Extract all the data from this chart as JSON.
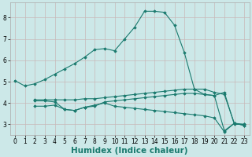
{
  "xlabel": "Humidex (Indice chaleur)",
  "bg_color": "#cce8e8",
  "grid_color": "#b0d0d0",
  "line_color": "#1a7a6e",
  "lines": [
    {
      "x": [
        0,
        1,
        2,
        3,
        4,
        5,
        6,
        7,
        8,
        9,
        10,
        11,
        12,
        13,
        14,
        15,
        16,
        17,
        18,
        19,
        20,
        21,
        22,
        23
      ],
      "y": [
        5.05,
        4.8,
        4.9,
        5.1,
        5.35,
        5.6,
        5.85,
        6.15,
        6.5,
        6.55,
        6.45,
        7.0,
        7.55,
        8.3,
        8.3,
        8.25,
        7.65,
        6.35,
        4.65,
        4.4,
        4.35,
        4.5,
        3.0,
        3.0
      ]
    },
    {
      "x": [
        2,
        3,
        4,
        5,
        6,
        7,
        8,
        9,
        10,
        11,
        12,
        13,
        14,
        15,
        16,
        17,
        18,
        19,
        20,
        21,
        22,
        23
      ],
      "y": [
        4.15,
        4.15,
        4.15,
        4.15,
        4.15,
        4.2,
        4.2,
        4.25,
        4.3,
        4.35,
        4.4,
        4.45,
        4.5,
        4.55,
        4.6,
        4.65,
        4.65,
        4.65,
        4.5,
        4.4,
        3.05,
        3.0
      ]
    },
    {
      "x": [
        2,
        3,
        4,
        5,
        6,
        7,
        8,
        9,
        10,
        11,
        12,
        13,
        14,
        15,
        16,
        17,
        18,
        19,
        20,
        21,
        22,
        23
      ],
      "y": [
        3.85,
        3.85,
        3.9,
        3.7,
        3.65,
        3.8,
        3.85,
        4.05,
        4.1,
        4.15,
        4.2,
        4.25,
        4.3,
        4.35,
        4.4,
        4.45,
        4.45,
        4.4,
        4.35,
        2.7,
        3.05,
        2.95
      ]
    },
    {
      "x": [
        2,
        3,
        4,
        5,
        6,
        7,
        8,
        9,
        10,
        11,
        12,
        13,
        14,
        15,
        16,
        17,
        18,
        19,
        20,
        21,
        22,
        23
      ],
      "y": [
        4.1,
        4.1,
        4.05,
        3.7,
        3.65,
        3.8,
        3.9,
        4.0,
        3.85,
        3.8,
        3.75,
        3.7,
        3.65,
        3.6,
        3.55,
        3.5,
        3.45,
        3.4,
        3.3,
        2.65,
        3.05,
        2.95
      ]
    }
  ],
  "xlim": [
    -0.5,
    23.5
  ],
  "ylim": [
    2.5,
    8.7
  ],
  "xticks": [
    0,
    1,
    2,
    3,
    4,
    5,
    6,
    7,
    8,
    9,
    10,
    11,
    12,
    13,
    14,
    15,
    16,
    17,
    18,
    19,
    20,
    21,
    22,
    23
  ],
  "yticks": [
    3,
    4,
    5,
    6,
    7,
    8
  ],
  "tick_fontsize": 5.5,
  "xlabel_fontsize": 7.5
}
